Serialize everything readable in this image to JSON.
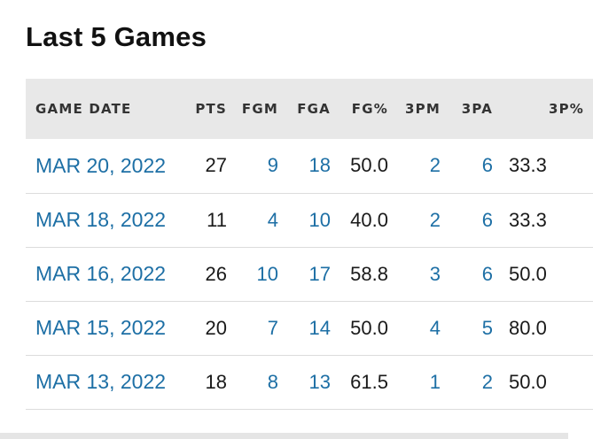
{
  "title": "Last 5 Games",
  "table": {
    "headers": [
      "GAME DATE",
      "PTS",
      "FGM",
      "FGA",
      "FG%",
      "3PM",
      "3PA",
      "3P%"
    ],
    "rows": [
      {
        "date": "MAR 20, 2022",
        "pts": "27",
        "fgm": "9",
        "fga": "18",
        "fgp": "50.0",
        "tpm": "2",
        "tpa": "6",
        "tpp": "33.3"
      },
      {
        "date": "MAR 18, 2022",
        "pts": "11",
        "fgm": "4",
        "fga": "10",
        "fgp": "40.0",
        "tpm": "2",
        "tpa": "6",
        "tpp": "33.3"
      },
      {
        "date": "MAR 16, 2022",
        "pts": "26",
        "fgm": "10",
        "fga": "17",
        "fgp": "58.8",
        "tpm": "3",
        "tpa": "6",
        "tpp": "50.0"
      },
      {
        "date": "MAR 15, 2022",
        "pts": "20",
        "fgm": "7",
        "fga": "14",
        "fgp": "50.0",
        "tpm": "4",
        "tpa": "5",
        "tpp": "80.0"
      },
      {
        "date": "MAR 13, 2022",
        "pts": "18",
        "fgm": "8",
        "fga": "13",
        "fgp": "61.5",
        "tpm": "1",
        "tpa": "2",
        "tpp": "50.0"
      }
    ]
  },
  "colors": {
    "link": "#1d6fa5",
    "header_bg": "#e8e8e8"
  }
}
